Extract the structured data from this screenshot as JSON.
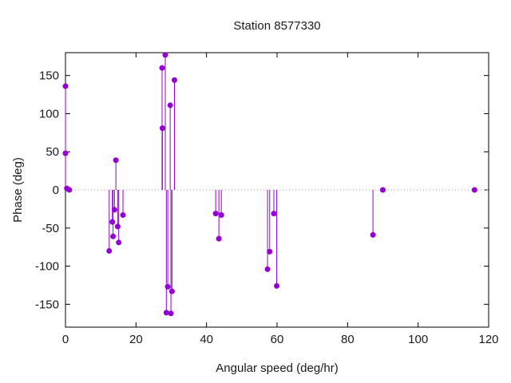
{
  "chart_data": {
    "type": "scatter",
    "style": "impulses-with-points",
    "title": "Station 8577330",
    "xlabel": "Angular speed (deg/hr)",
    "ylabel": "Phase (deg)",
    "xlim": [
      0,
      120
    ],
    "ylim": [
      -180,
      180
    ],
    "x_ticks": [
      0,
      20,
      40,
      60,
      80,
      100,
      120
    ],
    "y_ticks": [
      -150,
      -100,
      -50,
      0,
      50,
      100,
      150
    ],
    "grid": false,
    "legend": "none",
    "zero_line": true,
    "point_color": "#9400d3",
    "zero_line_color": "#aaa2ac",
    "axis_color": "#000000",
    "points": [
      [
        0,
        136
      ],
      [
        0,
        48
      ],
      [
        0.4,
        2
      ],
      [
        1.1,
        0
      ],
      [
        12.4,
        -80
      ],
      [
        13.3,
        -42
      ],
      [
        13.5,
        -61
      ],
      [
        13.9,
        -26
      ],
      [
        14.3,
        39
      ],
      [
        14.8,
        -48
      ],
      [
        15.1,
        -69
      ],
      [
        16.3,
        -33
      ],
      [
        27.4,
        160
      ],
      [
        27.5,
        81
      ],
      [
        28.3,
        177
      ],
      [
        28.6,
        -161
      ],
      [
        29.0,
        -127
      ],
      [
        29.7,
        111
      ],
      [
        29.9,
        -162
      ],
      [
        30.2,
        -133
      ],
      [
        30.9,
        144
      ],
      [
        42.6,
        -31
      ],
      [
        43.5,
        -64
      ],
      [
        44.2,
        -33
      ],
      [
        57.3,
        -104
      ],
      [
        57.9,
        -81
      ],
      [
        59.1,
        -31
      ],
      [
        59.9,
        -126
      ],
      [
        87.2,
        -59
      ],
      [
        90.0,
        0
      ],
      [
        116.0,
        0
      ]
    ]
  }
}
